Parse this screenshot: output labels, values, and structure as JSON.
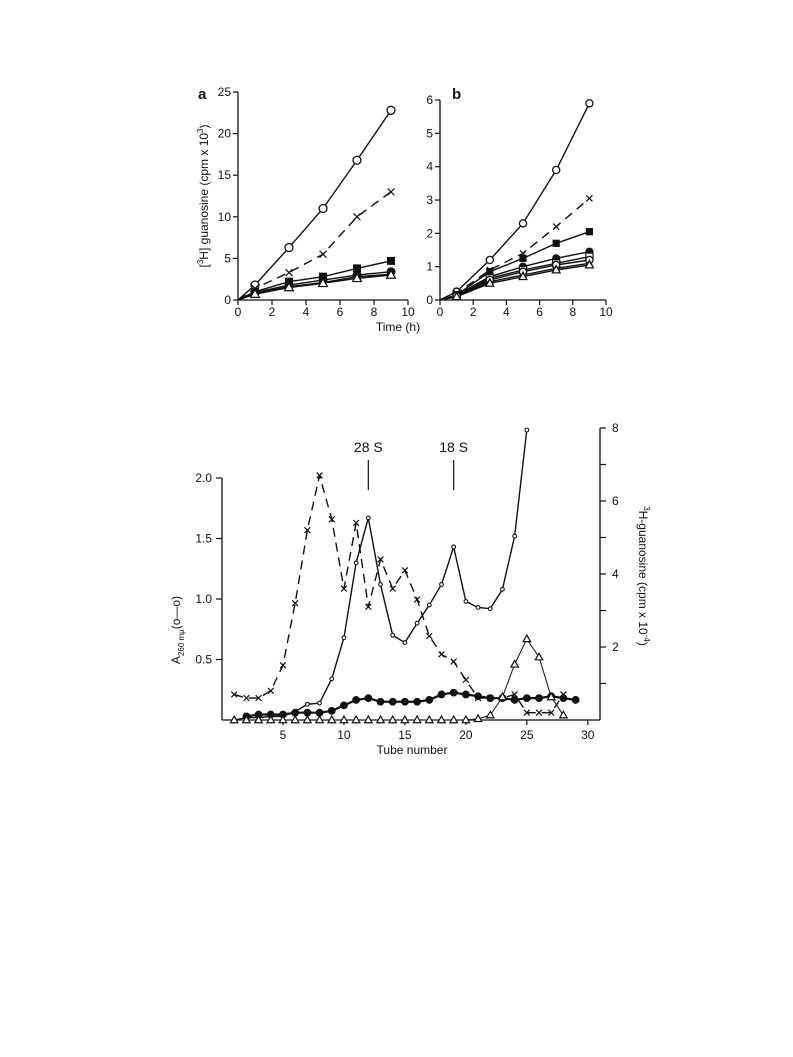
{
  "chart_data": [
    {
      "type": "line",
      "panel_label": "a",
      "xlabel": "Time (h)",
      "ylabel": "[3H] guanosine (cpm x 10^3)",
      "ylabel_parts": {
        "pre": "[",
        "sup": "3",
        "mid": "H] guanosine (cpm x 10",
        "sup2": "3",
        "post": ")"
      },
      "xlim": [
        0,
        10
      ],
      "ylim": [
        0,
        25
      ],
      "xticks": [
        0,
        2,
        4,
        6,
        8,
        10
      ],
      "yticks": [
        0,
        5,
        10,
        15,
        20,
        25
      ],
      "x": [
        1,
        3,
        5,
        7,
        9
      ],
      "series": [
        {
          "marker": "open-circle",
          "line": "solid",
          "values": [
            1.8,
            6.3,
            11.0,
            16.8,
            22.8
          ]
        },
        {
          "marker": "cross",
          "line": "dashed",
          "values": [
            1.4,
            3.3,
            5.5,
            10.0,
            13.0
          ]
        },
        {
          "marker": "filled-square",
          "line": "solid",
          "values": [
            1.0,
            2.2,
            2.8,
            3.8,
            4.7
          ]
        },
        {
          "marker": "filled-circle",
          "line": "solid",
          "values": [
            0.9,
            1.8,
            2.4,
            3.0,
            3.4
          ]
        },
        {
          "marker": "filled-triangle",
          "line": "solid",
          "values": [
            0.8,
            1.6,
            2.1,
            2.8,
            3.1
          ]
        },
        {
          "marker": "open-triangle",
          "line": "solid",
          "values": [
            0.7,
            1.5,
            2.0,
            2.6,
            3.0
          ]
        }
      ]
    },
    {
      "type": "line",
      "panel_label": "b",
      "xlabel": "",
      "ylabel": "",
      "xlim": [
        0,
        10
      ],
      "ylim": [
        0,
        6
      ],
      "xticks": [
        0,
        2,
        4,
        6,
        8,
        10
      ],
      "yticks": [
        0,
        1,
        2,
        3,
        4,
        5,
        6
      ],
      "x": [
        1,
        3,
        5,
        7,
        9
      ],
      "series": [
        {
          "marker": "open-circle",
          "line": "solid",
          "values": [
            0.25,
            1.2,
            2.3,
            3.9,
            5.9
          ]
        },
        {
          "marker": "cross",
          "line": "dashed",
          "values": [
            0.2,
            0.9,
            1.4,
            2.2,
            3.05
          ]
        },
        {
          "marker": "filled-square",
          "line": "solid",
          "values": [
            0.15,
            0.85,
            1.25,
            1.7,
            2.05
          ]
        },
        {
          "marker": "filled-circle",
          "line": "solid",
          "values": [
            0.15,
            0.7,
            1.0,
            1.25,
            1.45
          ]
        },
        {
          "marker": "open-square",
          "line": "solid",
          "values": [
            0.12,
            0.65,
            0.9,
            1.1,
            1.3
          ]
        },
        {
          "marker": "open-circle",
          "line": "solid",
          "values": [
            0.12,
            0.6,
            0.85,
            1.05,
            1.2
          ]
        },
        {
          "marker": "filled-triangle",
          "line": "solid",
          "values": [
            0.1,
            0.55,
            0.75,
            0.95,
            1.1
          ]
        },
        {
          "marker": "open-triangle",
          "line": "solid",
          "values": [
            0.1,
            0.5,
            0.7,
            0.9,
            1.05
          ]
        }
      ]
    },
    {
      "type": "line",
      "xlabel": "Tube number",
      "ylabel_left": "A260 mμ (o—o)",
      "ylabel_left_parts": {
        "main": "A",
        "sub": "260 mμ",
        "post": "(o—o)"
      },
      "ylabel_right": "3H-guanosine (cpm x 10^-4)",
      "ylabel_right_parts": {
        "sup": "3",
        "main": "H-guanosine (cpm x 10",
        "sup2": "-4",
        "post": ")"
      },
      "xlim": [
        0,
        31
      ],
      "ylim_left": [
        0,
        2.0
      ],
      "ylim_right": [
        0,
        8
      ],
      "xticks": [
        5,
        10,
        15,
        20,
        25,
        30
      ],
      "yticks_left": [
        0.5,
        1.0,
        1.5,
        2.0
      ],
      "yticks_left_labels": [
        "0.5",
        "1.0",
        "1.5",
        "2.0"
      ],
      "yticks_right": [
        2,
        4,
        6,
        8
      ],
      "annotations": [
        {
          "text": "28 S",
          "x": 12
        },
        {
          "text": "18 S",
          "x": 19
        }
      ],
      "series": [
        {
          "marker": "small-open-circle",
          "line": "solid",
          "axis": "left",
          "x": [
            1,
            2,
            3,
            4,
            5,
            6,
            7,
            8,
            9,
            10,
            11,
            12,
            13,
            14,
            15,
            16,
            17,
            18,
            19,
            20,
            21,
            22,
            23,
            24,
            25
          ],
          "values": [
            0.0,
            0.02,
            0.02,
            0.03,
            0.03,
            0.07,
            0.13,
            0.14,
            0.34,
            0.68,
            1.3,
            1.67,
            1.12,
            0.7,
            0.64,
            0.8,
            0.95,
            1.12,
            1.43,
            0.98,
            0.93,
            0.92,
            1.08,
            1.52,
            2.4
          ]
        },
        {
          "marker": "cross",
          "line": "dashed",
          "axis": "right",
          "x": [
            1,
            2,
            3,
            4,
            5,
            6,
            7,
            8,
            9,
            10,
            11,
            12,
            13,
            14,
            15,
            16,
            17,
            18,
            19,
            20,
            21,
            22,
            23,
            24,
            25,
            26,
            27,
            28
          ],
          "values": [
            0.7,
            0.6,
            0.6,
            0.8,
            1.5,
            3.2,
            5.2,
            6.7,
            5.5,
            3.6,
            5.4,
            3.1,
            4.4,
            3.6,
            4.1,
            3.3,
            2.3,
            1.8,
            1.6,
            1.1,
            0.6,
            0.6,
            0.6,
            0.7,
            0.2,
            0.2,
            0.2,
            0.7
          ]
        },
        {
          "marker": "filled-circle",
          "line": "thick",
          "axis": "right",
          "x": [
            2,
            3,
            4,
            5,
            6,
            7,
            8,
            9,
            10,
            11,
            12,
            13,
            14,
            15,
            16,
            17,
            18,
            19,
            20,
            21,
            22,
            23,
            24,
            25,
            26,
            27,
            28,
            29
          ],
          "values": [
            0.1,
            0.15,
            0.15,
            0.15,
            0.2,
            0.2,
            0.2,
            0.25,
            0.4,
            0.55,
            0.6,
            0.5,
            0.5,
            0.5,
            0.5,
            0.55,
            0.7,
            0.75,
            0.7,
            0.65,
            0.6,
            0.6,
            0.55,
            0.6,
            0.6,
            0.65,
            0.6,
            0.55
          ]
        },
        {
          "marker": "open-triangle",
          "line": "thin",
          "axis": "left",
          "x": [
            1,
            2,
            3,
            4,
            5,
            6,
            7,
            8,
            9,
            10,
            11,
            12,
            13,
            14,
            15,
            16,
            17,
            18,
            19,
            20,
            21,
            22,
            23,
            24,
            25,
            26,
            27,
            28
          ],
          "values": [
            0,
            0,
            0,
            0,
            0,
            0,
            0,
            0,
            0,
            0,
            0,
            0,
            0,
            0,
            0,
            0,
            0,
            0,
            0,
            0,
            0.01,
            0.04,
            0.19,
            0.46,
            0.67,
            0.52,
            0.19,
            0.04
          ]
        }
      ]
    }
  ]
}
